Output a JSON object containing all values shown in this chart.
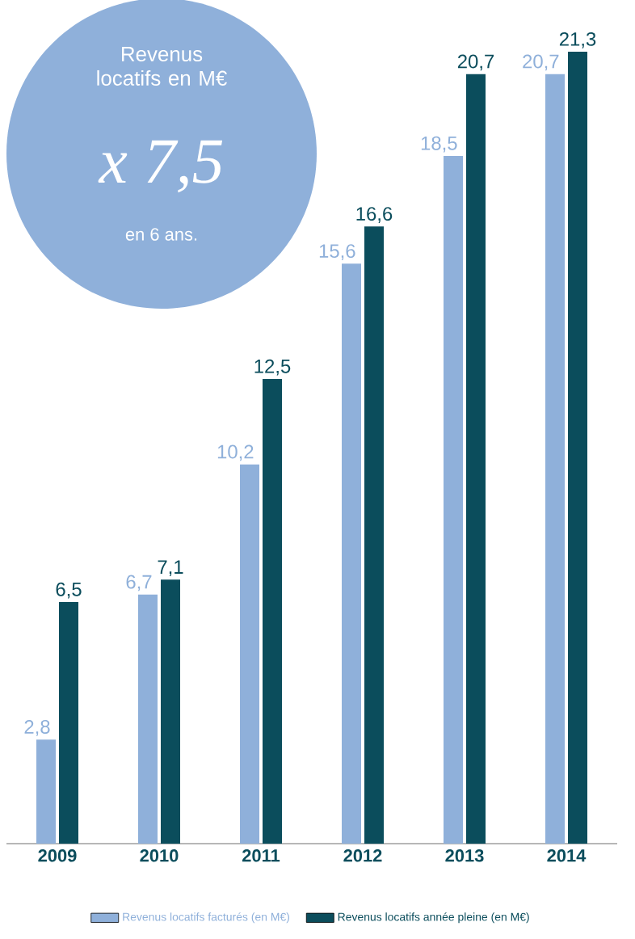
{
  "chart_data": {
    "type": "bar",
    "title": "Revenus locatifs en M€",
    "annotations": [
      "x 7,5",
      "en 6 ans."
    ],
    "categories": [
      "2009",
      "2010",
      "2011",
      "2012",
      "2013",
      "2014"
    ],
    "series": [
      {
        "name": "Revenus locatifs facturés (en M€)",
        "color": "#8fb0da",
        "values": [
          2.8,
          6.7,
          10.2,
          15.6,
          18.5,
          20.7
        ],
        "value_labels": [
          "2,8",
          "6,7",
          "10,2",
          "15,6",
          "18,5",
          "20,7"
        ]
      },
      {
        "name": "Revenus locatifs année pleine (en M€)",
        "color": "#0b4d5c",
        "values": [
          6.5,
          7.1,
          12.5,
          16.6,
          20.7,
          21.3
        ],
        "value_labels": [
          "6,5",
          "7,1",
          "12,5",
          "16,6",
          "20,7",
          "21,3"
        ]
      }
    ],
    "legend": "bottom"
  }
}
